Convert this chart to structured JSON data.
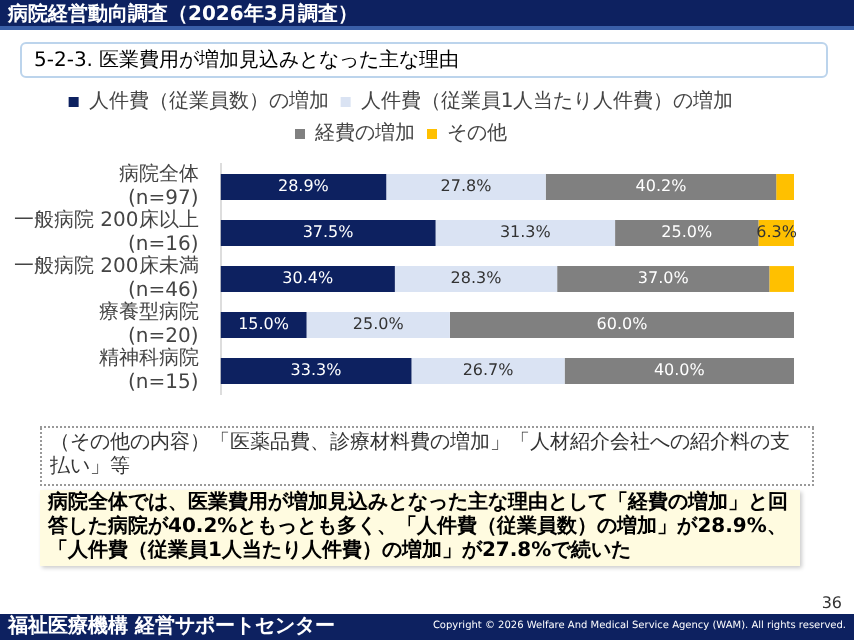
{
  "chart_data": {
    "type": "bar",
    "orientation": "horizontal",
    "stacked": true,
    "title": "5-2-3. 医業費用が増加見込みとなった主な理由",
    "subtitle": "病院経営動向調査（2026年3月調査）",
    "categories": [
      "病院全体\n(n=97)",
      "一般病院 200床以上\n(n=16)",
      "一般病院 200床未満\n(n=46)",
      "療養型病院\n(n=20)",
      "精神科病院\n(n=15)"
    ],
    "series": [
      {
        "name": "人件費（従業員数）の増加",
        "color": "#0d2160",
        "values": [
          28.9,
          37.5,
          30.4,
          15.0,
          33.3
        ],
        "value_labels": [
          "28.9%",
          "37.5%",
          "30.4%",
          "15.0%",
          "33.3%"
        ]
      },
      {
        "name": "人件費（従業員1人当たり人件費）の増加",
        "color": "#dae3f3",
        "values": [
          27.8,
          31.3,
          28.3,
          25.0,
          26.7
        ],
        "value_labels": [
          "27.8%",
          "31.3%",
          "28.3%",
          "25.0%",
          "26.7%"
        ]
      },
      {
        "name": "経費の増加",
        "color": "#808080",
        "values": [
          40.2,
          25.0,
          37.0,
          60.0,
          40.0
        ],
        "value_labels": [
          "40.2%",
          "25.0%",
          "37.0%",
          "60.0%",
          "40.0%"
        ]
      },
      {
        "name": "その他",
        "color": "#ffc000",
        "values": [
          3.1,
          6.3,
          4.3,
          0,
          0
        ],
        "value_labels": [
          null,
          "6.3%",
          null,
          null,
          null
        ]
      }
    ],
    "xlim": [
      0,
      100
    ],
    "tick_labels": "y",
    "grid": false,
    "legend": "top",
    "annotations": [
      "（その他の内容）「医薬品費、診療材料費の増加」「人材紹介会社への紹介料の支払い」等",
      "病院全体では、医業費用が増加見込みとなった主な理由として「経費の増加」と回答した病院が40.2%ともっとも多く、「人件費（従業員数）の増加」が28.9%、「人件費（従業員1人当たり人件費）の増加」が27.8%で続いた",
      "36",
      "福祉医療機構 経営サポートセンター",
      "Copyright © 2026 Welfare And Medical Service Agency (WAM). All rights reserved."
    ]
  }
}
